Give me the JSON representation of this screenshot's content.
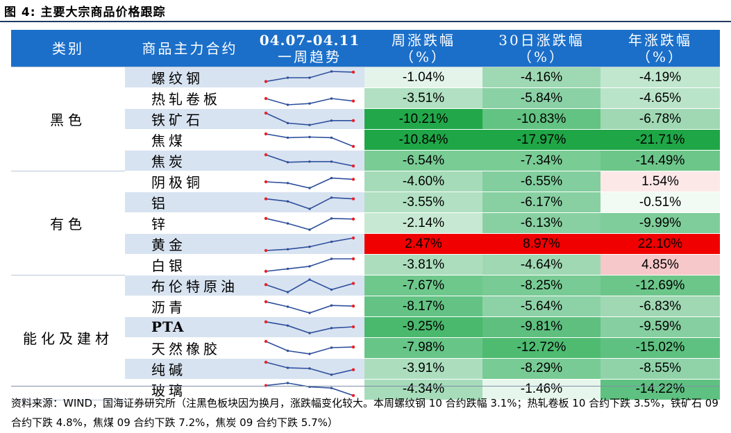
{
  "title": "图 4:  主要大宗商品价格跟踪",
  "headers": {
    "category": "类别",
    "commodity": "商品主力合约",
    "trend_dates": "04.07-04.11",
    "trend_label": "一周趋势",
    "week": "周涨跌幅",
    "month": "30日涨跌幅",
    "year": "年涨跌幅",
    "unit": "（%）"
  },
  "groups": [
    {
      "category": "黑色",
      "start": 0,
      "span": 5
    },
    {
      "category": "有色",
      "start": 5,
      "span": 5
    },
    {
      "category": "能化及建材",
      "start": 10,
      "span": 6
    }
  ],
  "rows": [
    {
      "name": "螺纹钢",
      "trend": [
        0.2,
        0.5,
        0.5,
        1.0,
        0.95
      ],
      "week": "-1.04%",
      "month": "-4.16%",
      "year": "-4.19%",
      "colors": [
        "#e4f4ea",
        "#9ed9b4",
        "#c1e7cf"
      ]
    },
    {
      "name": "热轧卷板",
      "trend": [
        0.5,
        0.0,
        0.1,
        0.5,
        0.3
      ],
      "week": "-3.51%",
      "month": "-5.84%",
      "year": "-4.65%",
      "colors": [
        "#b1e0c2",
        "#8bd1a6",
        "#bae4c9"
      ]
    },
    {
      "name": "铁矿石",
      "trend": [
        1.0,
        0.2,
        0.05,
        0.4,
        0.4
      ],
      "week": "-10.21%",
      "month": "-10.83%",
      "year": "-6.78%",
      "colors": [
        "#22a84a",
        "#63c383",
        "#9fd8b3"
      ]
    },
    {
      "name": "焦煤",
      "trend": [
        1.0,
        0.7,
        0.75,
        0.7,
        0.0
      ],
      "week": "-10.84%",
      "month": "-17.97%",
      "year": "-21.71%",
      "colors": [
        "#1fa647",
        "#1fa647",
        "#1fa647"
      ]
    },
    {
      "name": "焦炭",
      "trend": [
        1.0,
        0.4,
        0.45,
        0.45,
        0.1
      ],
      "week": "-6.54%",
      "month": "-7.34%",
      "year": "-14.49%",
      "colors": [
        "#7acc95",
        "#7acc95",
        "#6cc68a"
      ]
    },
    {
      "name": "阴极铜",
      "trend": [
        0.5,
        0.4,
        0.0,
        0.8,
        0.7
      ],
      "week": "-4.60%",
      "month": "-6.55%",
      "year": "1.54%",
      "colors": [
        "#a5dbb8",
        "#82ce9e",
        "#fde8e8"
      ]
    },
    {
      "name": "铝",
      "trend": [
        0.8,
        0.6,
        0.0,
        0.9,
        0.8
      ],
      "week": "-3.55%",
      "month": "-6.17%",
      "year": "-0.51%",
      "colors": [
        "#b1e0c2",
        "#88d0a2",
        "#f2faf4"
      ]
    },
    {
      "name": "锌",
      "trend": [
        0.9,
        0.5,
        0.0,
        0.9,
        0.85
      ],
      "week": "-2.14%",
      "month": "-6.13%",
      "year": "-9.99%",
      "colors": [
        "#c7e9d3",
        "#88d0a2",
        "#7fcd9a"
      ]
    },
    {
      "name": "黄金",
      "trend": [
        0.0,
        0.1,
        0.3,
        0.7,
        1.0
      ],
      "week": "2.47%",
      "month": "8.97%",
      "year": "22.10%",
      "colors": [
        "#f00000",
        "#f00000",
        "#f00000"
      ]
    },
    {
      "name": "白银",
      "trend": [
        0.0,
        0.2,
        0.4,
        1.0,
        1.0
      ],
      "week": "-3.81%",
      "month": "-4.64%",
      "year": "4.85%",
      "colors": [
        "#acdebe",
        "#9fd8b3",
        "#f6c8c9"
      ]
    },
    {
      "name": "布伦特原油",
      "trend": [
        0.6,
        0.0,
        1.0,
        0.2,
        0.7
      ],
      "week": "-7.67%",
      "month": "-8.25%",
      "year": "-12.69%",
      "colors": [
        "#6ec88c",
        "#78cb94",
        "#6cc68a"
      ]
    },
    {
      "name": "沥青",
      "trend": [
        0.9,
        0.5,
        0.0,
        0.6,
        0.55
      ],
      "week": "-8.17%",
      "month": "-5.64%",
      "year": "-6.83%",
      "colors": [
        "#64c384",
        "#8dd2a7",
        "#9fd8b3"
      ]
    },
    {
      "name": "PTA",
      "trend": [
        0.9,
        0.6,
        0.0,
        0.4,
        0.5
      ],
      "week": "-9.25%",
      "month": "-9.81%",
      "year": "-9.59%",
      "colors": [
        "#4ab86d",
        "#5ebf7f",
        "#86cfa0"
      ]
    },
    {
      "name": "天然橡胶",
      "trend": [
        1.0,
        0.25,
        0.0,
        0.5,
        0.55
      ],
      "week": "-7.98%",
      "month": "-12.72%",
      "year": "-15.02%",
      "colors": [
        "#67c587",
        "#4ebb71",
        "#5fc181"
      ]
    },
    {
      "name": "纯碱",
      "trend": [
        1.0,
        0.55,
        0.5,
        0.0,
        0.4
      ],
      "week": "-3.91%",
      "month": "-8.29%",
      "year": "-8.55%",
      "colors": [
        "#acdebe",
        "#78cb94",
        "#90d3a9"
      ]
    },
    {
      "name": "玻璃",
      "trend": [
        0.8,
        1.0,
        0.7,
        0.6,
        0.0
      ],
      "week": "-4.34%",
      "month": "-1.46%",
      "year": "-14.22%",
      "colors": [
        "#a7dcba",
        "#e7f6ec",
        "#5fc181"
      ]
    }
  ],
  "source_note": "资料来源：WIND，国海证券研究所（注黑色板块因为换月，涨跌幅变化较大。本周螺纹钢 10 合约跌幅 3.1%；热轧卷板 10 合约下跌 3.5%，铁矿石 09 合约下跌 4.8%，焦煤 09 合约下跌 7.2%，焦炭 09 合约下跌 5.7%）",
  "sparkline_colors": {
    "line": "#2e4f9c",
    "end_marker": "#e8202a"
  }
}
